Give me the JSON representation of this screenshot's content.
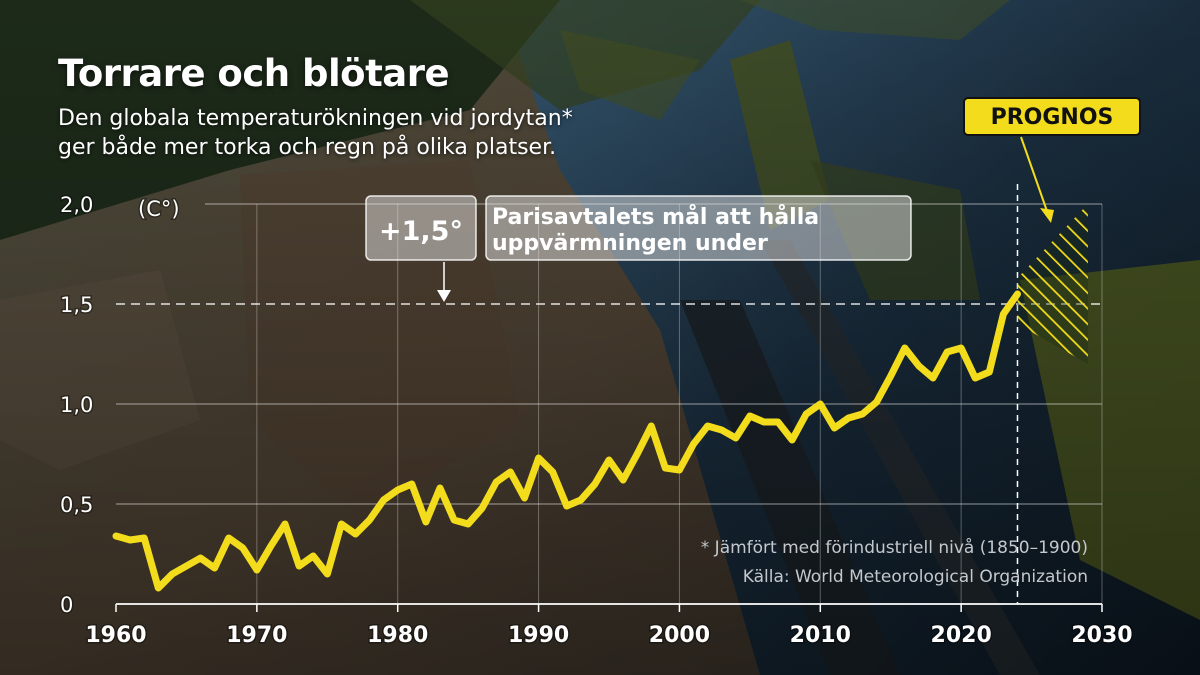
{
  "title": "Torrare och blötare",
  "subtitle_lines": [
    "Den globala temperaturökningen vid jordytan*",
    "ger både mer torka och regn på olika platser."
  ],
  "colors": {
    "line": "#f2dc1c",
    "grid": "#ffffff",
    "annotation_box": "#e4e4e4",
    "prognos_label_bg": "#f2dc1c"
  },
  "annotation": {
    "value_label": "+1,5°",
    "text_lines": [
      "Parisavtalets mål att hålla",
      "uppvärmningen under"
    ]
  },
  "prognos_label": "PROGNOS",
  "footnote": "* Jämfört med förindustriell nivå (1850–1900)",
  "source": "Källa: World Meteorological Organization",
  "chart_data": {
    "type": "line",
    "title": "Torrare och blötare",
    "ylabel": "(C°)",
    "xlabel": "",
    "xlim": [
      1960,
      2030
    ],
    "ylim": [
      0,
      2.0
    ],
    "grid": true,
    "x_ticks": [
      1960,
      1970,
      1980,
      1990,
      2000,
      2010,
      2020,
      2030
    ],
    "x_tick_labels": [
      "1960",
      "1970",
      "1980",
      "1990",
      "2000",
      "2010",
      "2020",
      "2030"
    ],
    "y_ticks": [
      0,
      0.5,
      1.0,
      1.5,
      2.0
    ],
    "y_tick_labels": [
      "0",
      "0,5",
      "1,0",
      "1,5",
      "2,0"
    ],
    "reference_line": {
      "y": 1.5,
      "style": "dashed"
    },
    "forecast": {
      "start": 2024,
      "end": 2029,
      "low": 1.2,
      "high": 2.0
    },
    "x": [
      1960,
      1961,
      1962,
      1963,
      1964,
      1965,
      1966,
      1967,
      1968,
      1969,
      1970,
      1971,
      1972,
      1973,
      1974,
      1975,
      1976,
      1977,
      1978,
      1979,
      1980,
      1981,
      1982,
      1983,
      1984,
      1985,
      1986,
      1987,
      1988,
      1989,
      1990,
      1991,
      1992,
      1993,
      1994,
      1995,
      1996,
      1997,
      1998,
      1999,
      2000,
      2001,
      2002,
      2003,
      2004,
      2005,
      2006,
      2007,
      2008,
      2009,
      2010,
      2011,
      2012,
      2013,
      2014,
      2015,
      2016,
      2017,
      2018,
      2019,
      2020,
      2021,
      2022,
      2023,
      2024
    ],
    "y": [
      0.34,
      0.32,
      0.33,
      0.08,
      0.15,
      0.19,
      0.23,
      0.18,
      0.33,
      0.28,
      0.17,
      0.29,
      0.4,
      0.19,
      0.24,
      0.15,
      0.4,
      0.35,
      0.42,
      0.52,
      0.57,
      0.6,
      0.41,
      0.58,
      0.42,
      0.4,
      0.48,
      0.61,
      0.66,
      0.53,
      0.73,
      0.66,
      0.49,
      0.52,
      0.6,
      0.72,
      0.62,
      0.75,
      0.89,
      0.68,
      0.67,
      0.8,
      0.89,
      0.87,
      0.83,
      0.94,
      0.91,
      0.91,
      0.82,
      0.95,
      1.0,
      0.88,
      0.93,
      0.95,
      1.01,
      1.14,
      1.28,
      1.19,
      1.13,
      1.26,
      1.28,
      1.13,
      1.16,
      1.45,
      1.55
    ]
  }
}
